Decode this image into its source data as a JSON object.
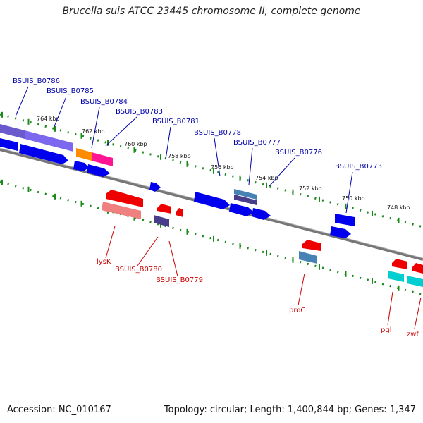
{
  "title": "Brucella suis ATCC 23445 chromosome II, complete genome",
  "footer": {
    "accession": "Accession: NC_010167",
    "summary": "Topology: circular; Length: 1,400,844 bp; Genes: 1,347"
  },
  "scale_labels": [
    "764 kbp",
    "762 kbp",
    "760 kbp",
    "758 kbp",
    "756 kbp",
    "754 kbp",
    "752 kbp",
    "750 kbp",
    "748 kbp"
  ],
  "forward_genes": [
    {
      "name": "BSUIS_B0786",
      "color": "#0000aa"
    },
    {
      "name": "BSUIS_B0785",
      "color": "#0000aa"
    },
    {
      "name": "BSUIS_B0784",
      "color": "#0000aa"
    },
    {
      "name": "BSUIS_B0783",
      "color": "#0000aa"
    },
    {
      "name": "BSUIS_B0781",
      "color": "#0000aa"
    },
    {
      "name": "BSUIS_B0778",
      "color": "#0000aa"
    },
    {
      "name": "BSUIS_B0777",
      "color": "#0000aa"
    },
    {
      "name": "BSUIS_B0776",
      "color": "#0000aa"
    },
    {
      "name": "BSUIS_B0773",
      "color": "#0000aa"
    }
  ],
  "reverse_genes": [
    {
      "name": "lysK",
      "color": "#cc0000"
    },
    {
      "name": "BSUIS_B0780",
      "color": "#cc0000"
    },
    {
      "name": "BSUIS_B0779",
      "color": "#cc0000"
    },
    {
      "name": "proC",
      "color": "#cc0000"
    },
    {
      "name": "pgl",
      "color": "#cc0000"
    },
    {
      "name": "zwf",
      "color": "#cc0000"
    }
  ]
}
